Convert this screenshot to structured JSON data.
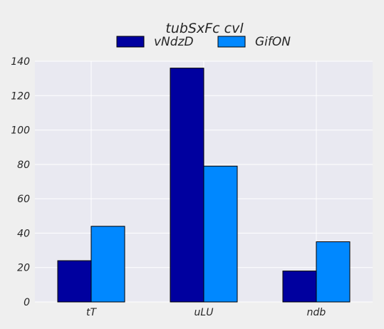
{
  "chart_data": {
    "type": "bar",
    "title": "tubSxFc cvl",
    "xlabel": "",
    "ylabel": "",
    "categories": [
      "tT",
      "uLU",
      "ndb"
    ],
    "series": [
      {
        "name": "vNdzD",
        "values": [
          24,
          136,
          18
        ],
        "color": "#00009f"
      },
      {
        "name": "GifON",
        "values": [
          44,
          79,
          35
        ],
        "color": "#0088ff"
      }
    ],
    "ylim": [
      0,
      140
    ],
    "yticks": [
      0,
      20,
      40,
      60,
      80,
      100,
      120,
      140
    ],
    "grid": true,
    "legend_position": "top-center",
    "plot_background": "#e9e9f1",
    "grid_color": "#ffffff"
  }
}
